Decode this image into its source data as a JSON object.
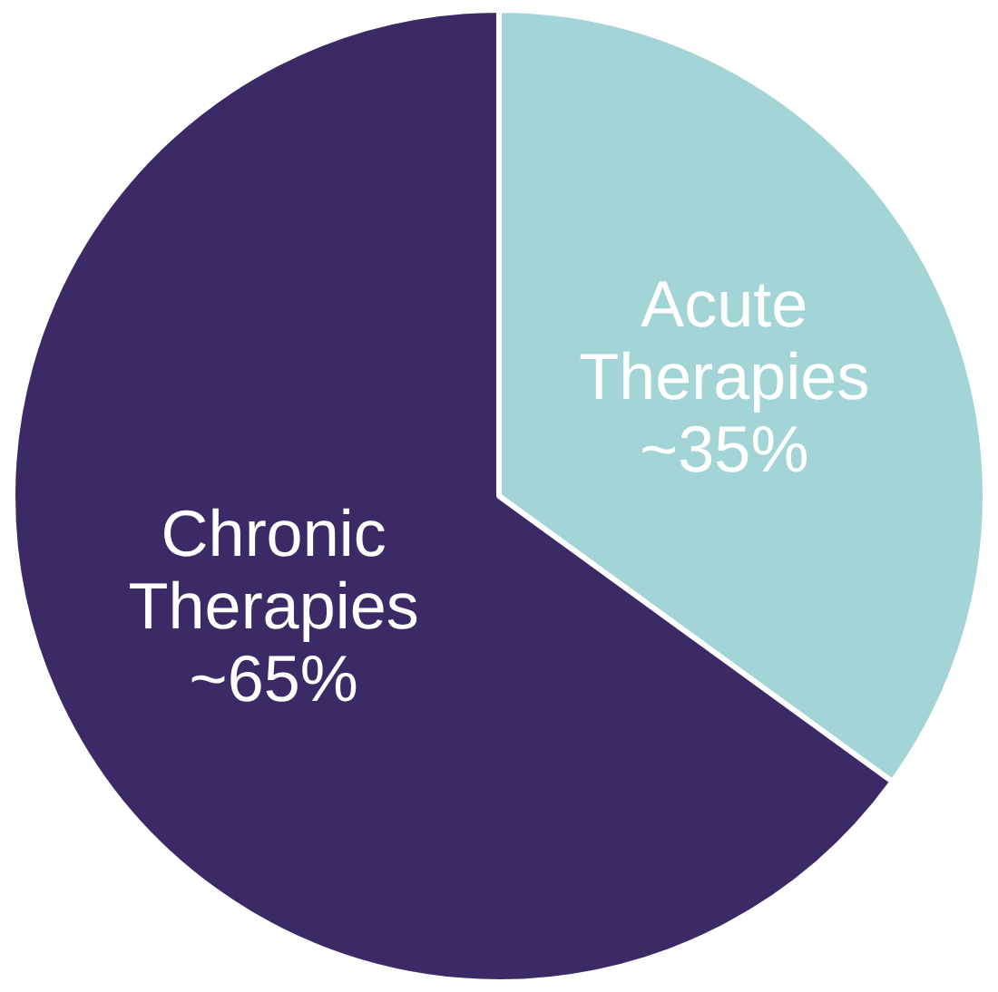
{
  "chart_data": {
    "type": "pie",
    "categories": [
      "Acute Therapies",
      "Chronic Therapies"
    ],
    "values": [
      35,
      65
    ],
    "colors": [
      "#a3d5d6",
      "#3b2a66"
    ],
    "value_labels": [
      "~35%",
      "~65%"
    ],
    "legend": false
  }
}
